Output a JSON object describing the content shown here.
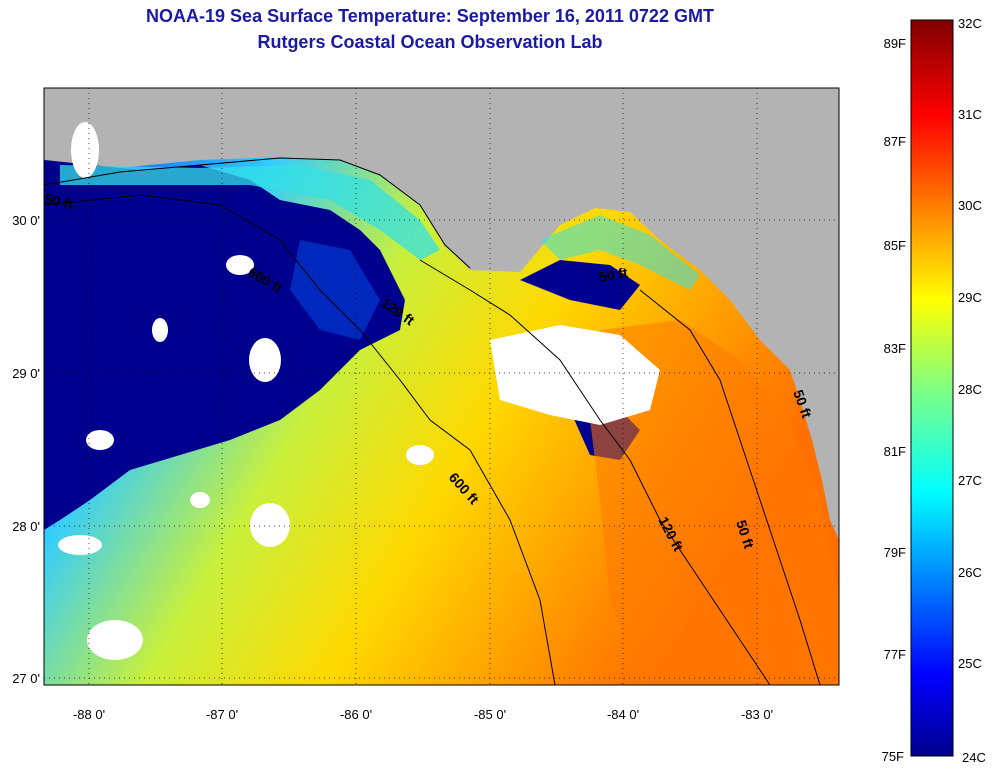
{
  "title": "NOAA-19 Sea Surface Temperature:  September 16, 2011 0722 GMT",
  "subtitle": "Rutgers Coastal Ocean Observation Lab",
  "colors": {
    "land": "#b3b3b3",
    "cloud": "#ffffff",
    "cold": "#00008f",
    "warm": "#ff7a00"
  },
  "longitude_labels": [
    "-88 0'",
    "-87 0'",
    "-86 0'",
    "-85 0'",
    "-84 0'",
    "-83 0'"
  ],
  "latitude_labels": [
    "30 0'",
    "29 0'",
    "28 0'",
    "27 0'"
  ],
  "contours": [
    {
      "label": "50 ft"
    },
    {
      "label": "600 ft"
    },
    {
      "label": "120 ft"
    },
    {
      "label": "50 ft"
    },
    {
      "label": "600 ft"
    },
    {
      "label": "120 ft"
    },
    {
      "label": "50 ft"
    },
    {
      "label": "50 ft"
    }
  ],
  "colorbar": {
    "fahrenheit": [
      "89F",
      "87F",
      "85F",
      "83F",
      "81F",
      "79F",
      "77F",
      "75F"
    ],
    "celsius": [
      "32C",
      "31C",
      "30C",
      "29C",
      "28C",
      "27C",
      "26C",
      "25C",
      "24C"
    ]
  }
}
